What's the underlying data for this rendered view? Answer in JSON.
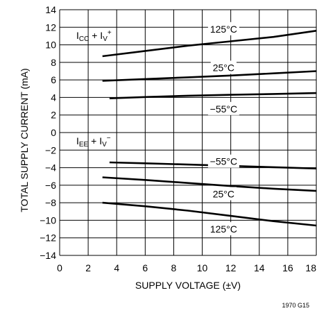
{
  "chart_data": {
    "type": "line",
    "xlabel": "SUPPLY VOLTAGE (±V)",
    "ylabel": "TOTAL SUPPLY CURRENT (mA)",
    "xlim": [
      0,
      18
    ],
    "ylim": [
      -14,
      14
    ],
    "x_ticks": [
      0,
      2,
      4,
      6,
      8,
      10,
      12,
      14,
      16,
      18
    ],
    "y_ticks": [
      -14,
      -12,
      -10,
      -8,
      -6,
      -4,
      -2,
      0,
      2,
      4,
      6,
      8,
      10,
      12,
      14
    ],
    "grid": true,
    "group_labels": {
      "icc": {
        "main": "I",
        "sub": "CC",
        "plus": " + I",
        "sub2": "V",
        "sup": "+"
      },
      "iee": {
        "main": "I",
        "sub": "EE",
        "plus": " + I",
        "sub2": "V",
        "sup": "−"
      }
    },
    "series": [
      {
        "name": "125°C",
        "label_at": [
          11.5,
          11.8
        ],
        "x": [
          3,
          6,
          9,
          12,
          15,
          18
        ],
        "y": [
          8.7,
          9.3,
          9.9,
          10.4,
          10.9,
          11.6
        ]
      },
      {
        "name": "25°C",
        "label_at": [
          11.5,
          7.4
        ],
        "x": [
          3,
          6,
          9,
          12,
          15,
          18
        ],
        "y": [
          5.9,
          6.1,
          6.3,
          6.5,
          6.75,
          7.0
        ]
      },
      {
        "name": "−55°C",
        "label_at": [
          11.5,
          2.7
        ],
        "x": [
          3.5,
          6,
          9,
          12,
          15,
          18
        ],
        "y": [
          3.9,
          4.05,
          4.2,
          4.3,
          4.4,
          4.5
        ]
      },
      {
        "name": "−55°C",
        "label_at": [
          11.5,
          -3.3
        ],
        "x": [
          3.5,
          6,
          9,
          12,
          15,
          18
        ],
        "y": [
          -3.4,
          -3.5,
          -3.65,
          -3.8,
          -3.95,
          -4.1
        ]
      },
      {
        "name": "25°C",
        "label_at": [
          11.5,
          -7.0
        ],
        "x": [
          3,
          6,
          9,
          12,
          15,
          18
        ],
        "y": [
          -5.1,
          -5.4,
          -5.75,
          -6.1,
          -6.4,
          -6.65
        ]
      },
      {
        "name": "125°C",
        "label_at": [
          11.5,
          -11.0
        ],
        "x": [
          3,
          6,
          9,
          12,
          15,
          18
        ],
        "y": [
          -8.0,
          -8.4,
          -8.9,
          -9.5,
          -10.1,
          -10.6
        ]
      }
    ]
  },
  "figure_code": "1970 G15"
}
